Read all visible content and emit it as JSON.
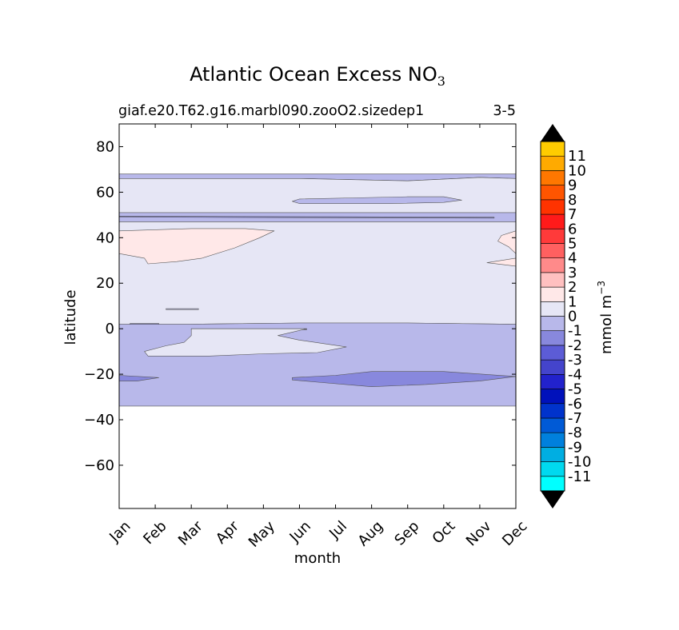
{
  "chart_data": {
    "type": "contour",
    "title": "Atlantic Ocean Excess NO",
    "title_subscript": "3",
    "subtitle_left": "giaf.e20.T62.g16.marbl090.zooO2.sizedep1",
    "subtitle_right": "3-5",
    "xlabel": "month",
    "ylabel": "latitude",
    "x_tick_labels": [
      "Jan",
      "Feb",
      "Mar",
      "Apr",
      "May",
      "Jun",
      "Jul",
      "Aug",
      "Sep",
      "Oct",
      "Nov",
      "Dec"
    ],
    "y_ticks": [
      80,
      60,
      40,
      20,
      0,
      -20,
      -40,
      -60
    ],
    "y_tick_labels": [
      "80",
      "60",
      "40",
      "20",
      "0",
      "−20",
      "−40",
      "−60"
    ],
    "xlim": [
      1,
      12
    ],
    "ylim": [
      -79,
      90
    ],
    "data_extent_lat": [
      -34,
      68
    ],
    "colorbar": {
      "label": "mmol m",
      "label_superscript": "−3",
      "levels": [
        -12,
        -11,
        -10,
        -9,
        -8,
        -7,
        -6,
        -5,
        -4,
        -3,
        -2,
        -1,
        0,
        1,
        2,
        3,
        4,
        5,
        6,
        7,
        8,
        9,
        10,
        11,
        12
      ],
      "tick_labels": [
        "-11",
        "-10",
        "-9",
        "-8",
        "-7",
        "-6",
        "-5",
        "-4",
        "-3",
        "-2",
        "-1",
        "0",
        "1",
        "2",
        "3",
        "4",
        "5",
        "6",
        "7",
        "8",
        "9",
        "10",
        "11"
      ],
      "colors": [
        "#00ffff",
        "#00d9ef",
        "#00aee2",
        "#0080dd",
        "#005ad6",
        "#0033cc",
        "#0011bb",
        "#2222cc",
        "#4444cc",
        "#5c5cd6",
        "#8888dd",
        "#b8b8ea",
        "#e6e6f5",
        "#ffe8e8",
        "#ffc0c0",
        "#ff8a8a",
        "#ff6060",
        "#ff3a3a",
        "#ff1a1a",
        "#ff3300",
        "#ff5500",
        "#ff7700",
        "#ffaa00",
        "#ffcc00",
        "#ffff00"
      ],
      "extend_colors": [
        "#000000",
        "#000000"
      ]
    },
    "regions": [
      {
        "name": "band-60-68",
        "level": "-2 to -1",
        "color": "#b8b8ea",
        "points": [
          [
            1,
            68
          ],
          [
            12,
            68
          ],
          [
            12,
            66
          ],
          [
            11,
            66.5
          ],
          [
            9,
            65
          ],
          [
            6,
            66
          ],
          [
            3,
            66
          ],
          [
            1,
            66
          ]
        ]
      },
      {
        "name": "core-north",
        "level": "-1 to 0",
        "color": "#e6e6f5",
        "points": [
          [
            1,
            66
          ],
          [
            3,
            66
          ],
          [
            6,
            66
          ],
          [
            9,
            65
          ],
          [
            11,
            66.5
          ],
          [
            12,
            66
          ],
          [
            12,
            51
          ],
          [
            1,
            51
          ]
        ]
      },
      {
        "name": "blob-56",
        "level": "-2 to -1",
        "color": "#b8b8ea",
        "points": [
          [
            6,
            57
          ],
          [
            7.5,
            57.5
          ],
          [
            9,
            58
          ],
          [
            10,
            58
          ],
          [
            10.5,
            56.5
          ],
          [
            10,
            55.5
          ],
          [
            8.5,
            55
          ],
          [
            6,
            55
          ],
          [
            5.8,
            56
          ]
        ]
      },
      {
        "name": "band-47-51",
        "level": "-2 to -1",
        "color": "#b8b8ea",
        "points": [
          [
            1,
            51
          ],
          [
            12,
            51
          ],
          [
            12,
            47
          ],
          [
            1,
            47
          ]
        ]
      },
      {
        "name": "line-49",
        "level": "-3 to -2",
        "color": "#8888dd",
        "points": [
          [
            1,
            49.5
          ],
          [
            4,
            49.3
          ],
          [
            7,
            49.2
          ],
          [
            9,
            49.1
          ],
          [
            11.4,
            49
          ],
          [
            11.4,
            48.6
          ],
          [
            7,
            48.8
          ],
          [
            4,
            48.9
          ],
          [
            1,
            49.1
          ]
        ]
      },
      {
        "name": "core-mid",
        "level": "-1 to 0",
        "color": "#e6e6f5",
        "points": [
          [
            1,
            47
          ],
          [
            12,
            47
          ],
          [
            12,
            2
          ],
          [
            9,
            2.5
          ],
          [
            6,
            2.5
          ],
          [
            3,
            2
          ],
          [
            1,
            2
          ]
        ]
      },
      {
        "name": "pink-west",
        "level": "0 to 1",
        "color": "#ffe8e8",
        "points": [
          [
            1,
            43
          ],
          [
            3,
            44
          ],
          [
            4.5,
            44
          ],
          [
            5.3,
            43
          ],
          [
            4.9,
            40
          ],
          [
            4.2,
            35.5
          ],
          [
            3.3,
            31
          ],
          [
            2.6,
            29.5
          ],
          [
            1.8,
            28.5
          ],
          [
            1.7,
            31
          ],
          [
            1,
            33
          ]
        ]
      },
      {
        "name": "pink-east-1",
        "level": "0 to 1",
        "color": "#ffe8e8",
        "points": [
          [
            12,
            43
          ],
          [
            11.6,
            41
          ],
          [
            11.5,
            38.5
          ],
          [
            11.8,
            36
          ],
          [
            12,
            33
          ]
        ]
      },
      {
        "name": "pink-east-2",
        "level": "0 to 1",
        "color": "#ffe8e8",
        "points": [
          [
            12,
            31
          ],
          [
            11.2,
            29
          ],
          [
            12,
            27.5
          ]
        ]
      },
      {
        "name": "line-mar",
        "level": "-2 to -1",
        "color": "#b8b8ea",
        "points": [
          [
            2.3,
            8.8
          ],
          [
            3.2,
            8.8
          ],
          [
            3.2,
            8.4
          ],
          [
            2.3,
            8.4
          ]
        ]
      },
      {
        "name": "south-band",
        "level": "-2 to -1",
        "color": "#b8b8ea",
        "points": [
          [
            1,
            2
          ],
          [
            3,
            2
          ],
          [
            6,
            2.5
          ],
          [
            9,
            2.5
          ],
          [
            12,
            2
          ],
          [
            12,
            -34
          ],
          [
            1,
            -34
          ]
        ]
      },
      {
        "name": "line-0-west",
        "level": "-3 to -2",
        "color": "#8888dd",
        "points": [
          [
            1.3,
            2.3
          ],
          [
            2.1,
            2.3
          ],
          [
            2.1,
            1.9
          ],
          [
            1.3,
            1.9
          ]
        ]
      },
      {
        "name": "line-0-apr",
        "level": "-3 to -2",
        "color": "#8888dd",
        "points": [
          [
            3,
            0
          ],
          [
            6.2,
            0
          ],
          [
            6.2,
            -0.4
          ],
          [
            3,
            -0.4
          ]
        ]
      },
      {
        "name": "white-blob-south",
        "level": "-1 to 0",
        "color": "#e6e6f5",
        "points": [
          [
            3,
            0
          ],
          [
            5,
            0
          ],
          [
            6.2,
            0
          ],
          [
            5.4,
            -3
          ],
          [
            6,
            -5
          ],
          [
            7.3,
            -8
          ],
          [
            6.5,
            -10.5
          ],
          [
            5,
            -11
          ],
          [
            3.5,
            -12
          ],
          [
            1.8,
            -12
          ],
          [
            1.7,
            -10
          ],
          [
            2.3,
            -7.5
          ],
          [
            2.8,
            -6
          ],
          [
            3,
            -3
          ]
        ]
      },
      {
        "name": "west-band-22",
        "level": "-3 to -2",
        "color": "#8888dd",
        "points": [
          [
            1,
            -20.5
          ],
          [
            2.1,
            -21.5
          ],
          [
            1.5,
            -23
          ],
          [
            1,
            -23
          ]
        ]
      },
      {
        "name": "central-band-22",
        "level": "-3 to -2",
        "color": "#8888dd",
        "points": [
          [
            5.8,
            -21.5
          ],
          [
            7,
            -20.5
          ],
          [
            8,
            -18.8
          ],
          [
            10,
            -18.8
          ],
          [
            12,
            -21
          ],
          [
            11,
            -23
          ],
          [
            9.5,
            -24.5
          ],
          [
            8,
            -25.5
          ],
          [
            6.5,
            -23.5
          ],
          [
            5.8,
            -22.5
          ]
        ]
      }
    ]
  }
}
